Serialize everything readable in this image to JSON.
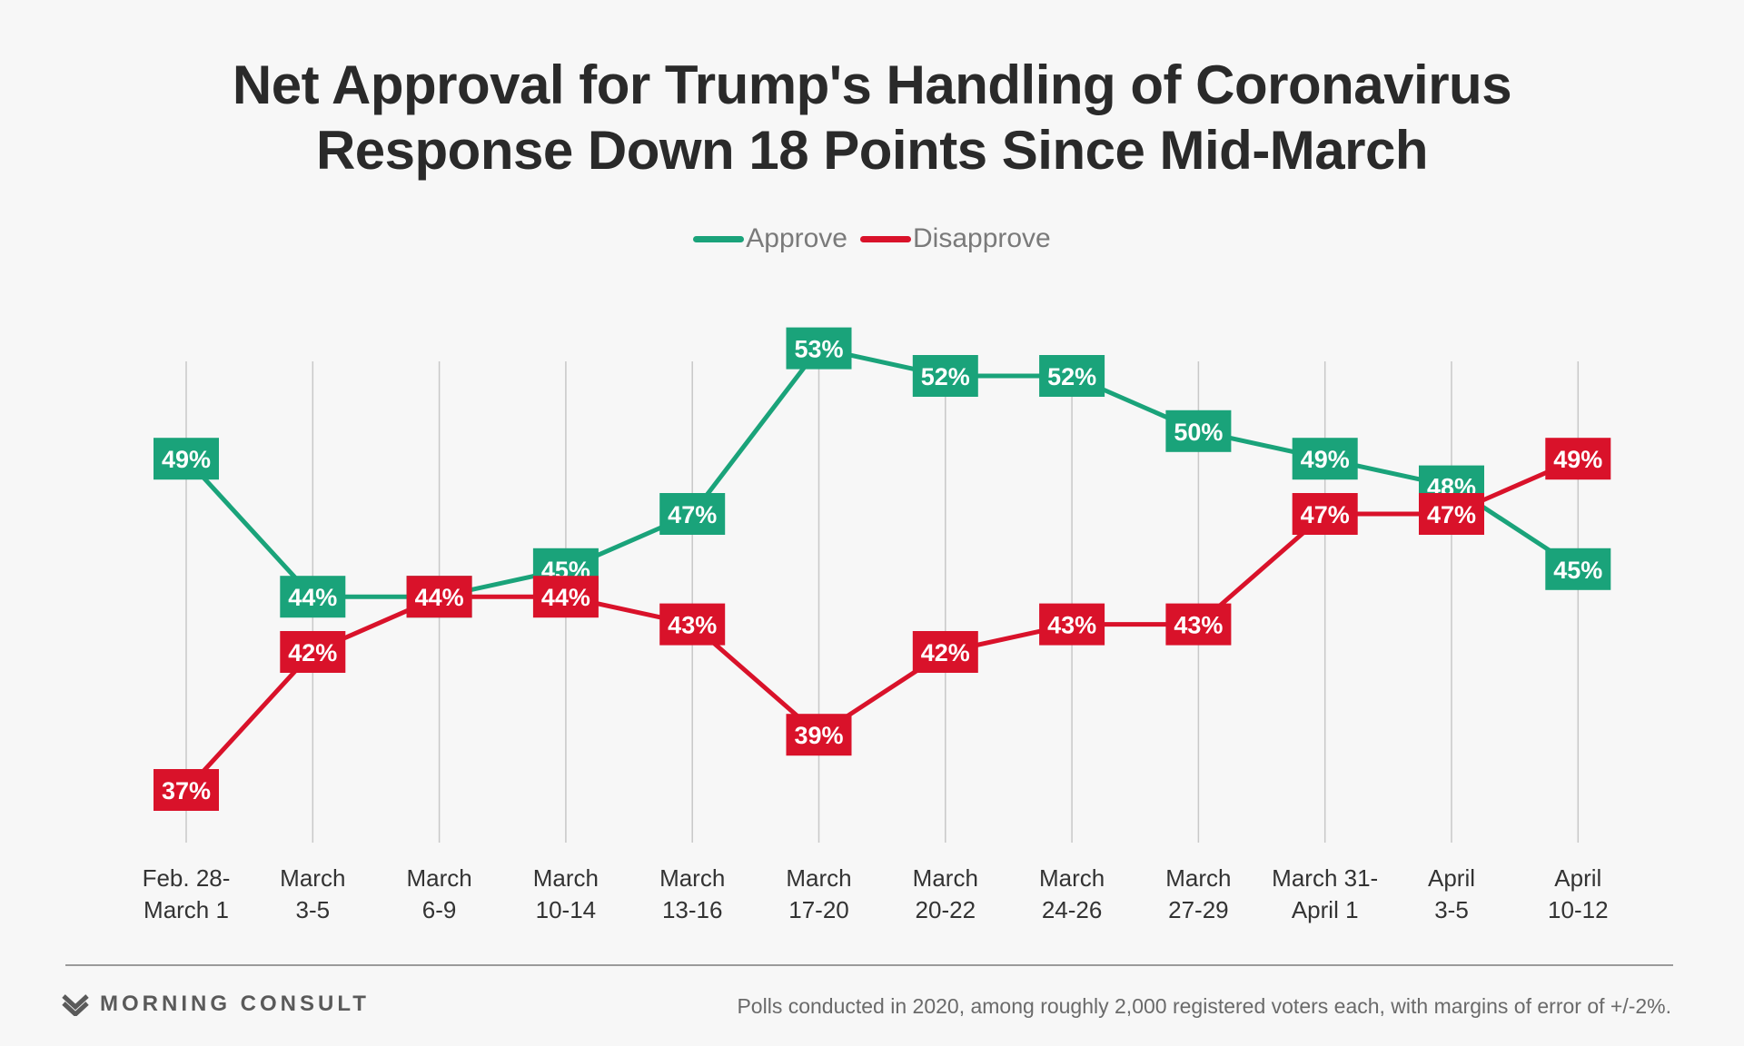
{
  "header": {
    "title_line1": "Net Approval for Trump's Handling of Coronavirus",
    "title_line2": "Response Down 18 Points Since Mid-March"
  },
  "legend": [
    {
      "label": "Approve",
      "color": "#1aa37a"
    },
    {
      "label": "Disapprove",
      "color": "#d9122a"
    }
  ],
  "chart_data": {
    "type": "line",
    "title": "Net Approval for Trump's Handling of Coronavirus Response Down 18 Points Since Mid-March",
    "categories": [
      [
        "Feb. 28-",
        "March 1"
      ],
      [
        "March",
        "3-5"
      ],
      [
        "March",
        "6-9"
      ],
      [
        "March",
        "10-14"
      ],
      [
        "March",
        "13-16"
      ],
      [
        "March",
        "17-20"
      ],
      [
        "March",
        "20-22"
      ],
      [
        "March",
        "24-26"
      ],
      [
        "March",
        "27-29"
      ],
      [
        "March 31-",
        "April 1"
      ],
      [
        "April",
        "3-5"
      ],
      [
        "April",
        "10-12"
      ]
    ],
    "series": [
      {
        "name": "Approve",
        "color": "#1aa37a",
        "values": [
          49,
          44,
          44,
          45,
          47,
          53,
          52,
          52,
          50,
          49,
          48,
          45
        ]
      },
      {
        "name": "Disapprove",
        "color": "#d9122a",
        "values": [
          37,
          42,
          44,
          44,
          43,
          39,
          42,
          43,
          43,
          47,
          47,
          49
        ]
      }
    ],
    "value_suffix": "%",
    "xlabel": "",
    "ylabel": "",
    "grid": "vertical lines at each category",
    "legend_position": "top-center"
  },
  "footer": {
    "brand": "MORNING CONSULT",
    "note": "Polls conducted in 2020, among roughly 2,000 registered voters each, with margins of error of +/-2%."
  }
}
